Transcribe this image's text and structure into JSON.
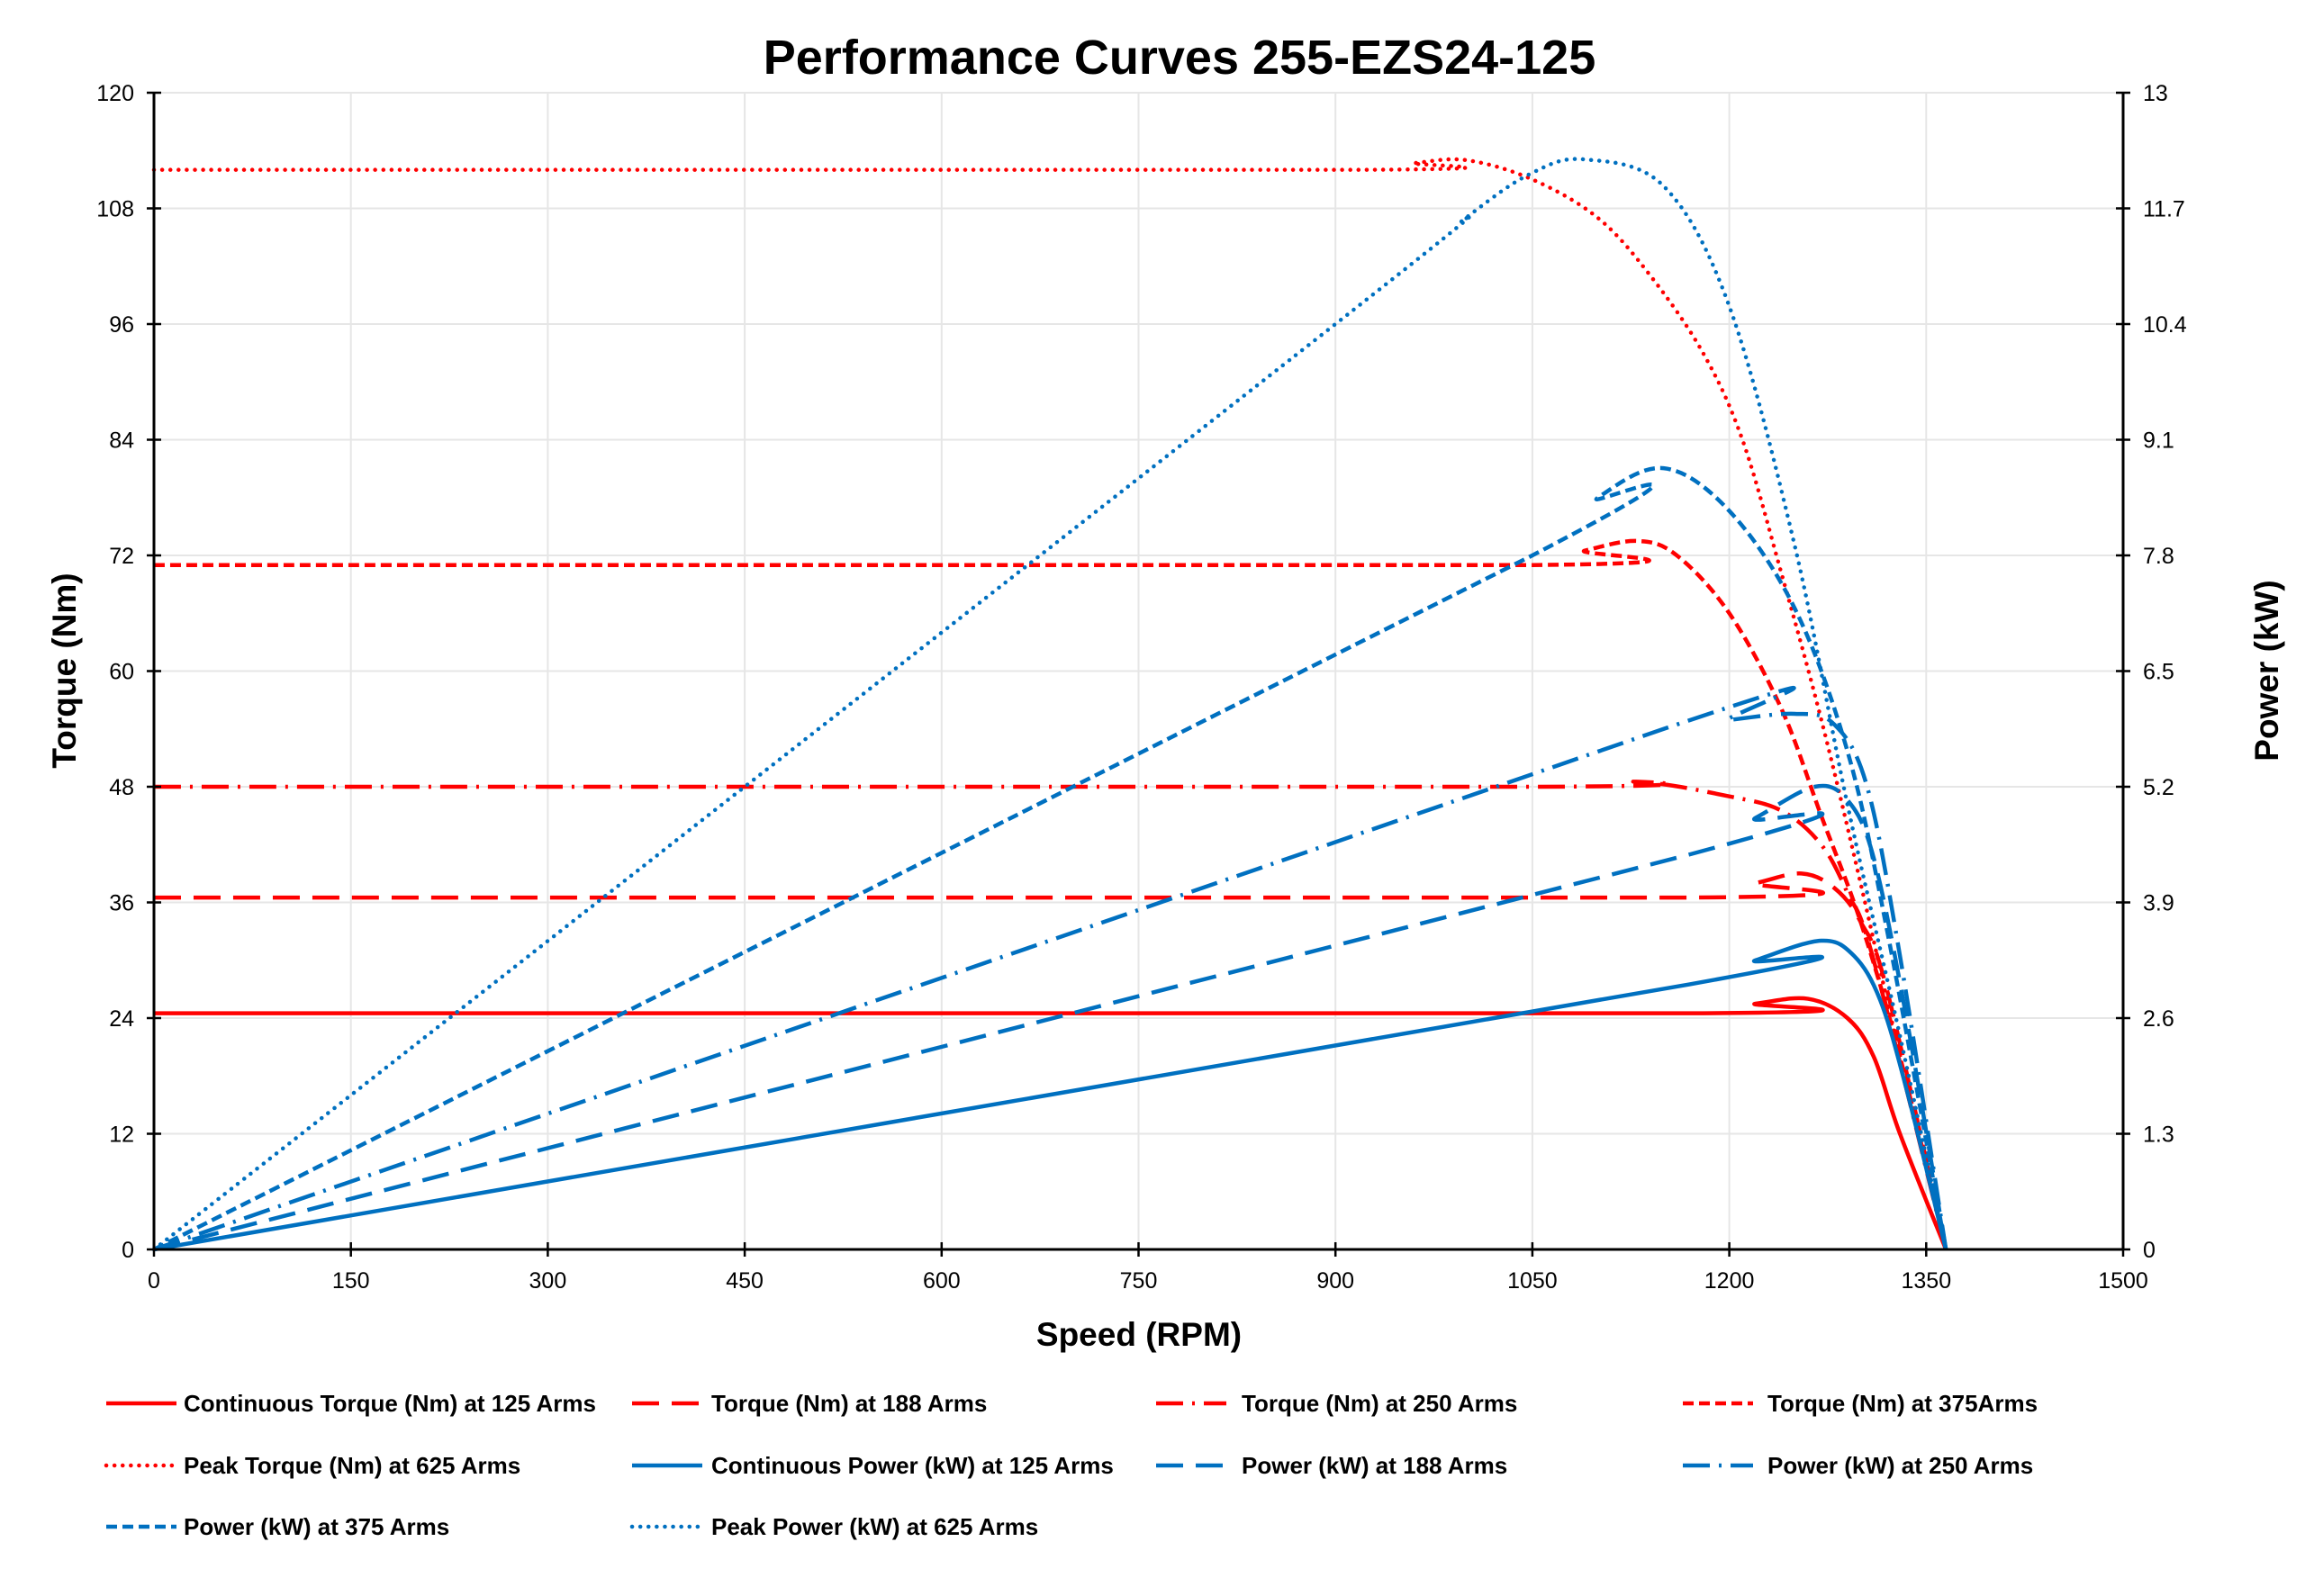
{
  "chart_data": {
    "type": "line",
    "title": "Performance Curves 255-EZS24-125",
    "xlabel": "Speed (RPM)",
    "ylabel": "Torque (Nm)",
    "y2label": "Power (kW)",
    "xlim": [
      0,
      1500
    ],
    "ylim": [
      0,
      120
    ],
    "y2lim": [
      0,
      13
    ],
    "xticks": [
      0,
      150,
      300,
      450,
      600,
      750,
      900,
      1050,
      1200,
      1350,
      1500
    ],
    "yticks": [
      0,
      12,
      24,
      36,
      48,
      60,
      72,
      84,
      96,
      108,
      120
    ],
    "y2ticks": [
      "0",
      "1.3",
      "2.6",
      "3.9",
      "5.2",
      "6.5",
      "7.8",
      "9.1",
      "10.4",
      "11.7",
      "13"
    ],
    "grid": true,
    "legend_position": "bottom",
    "colors": {
      "torque": "#FF0000",
      "power": "#0070C0"
    },
    "series": [
      {
        "name": "Continuous Torque (Nm) at 125 Arms",
        "axis": "left",
        "color": "#FF0000",
        "style": "solid",
        "points": [
          [
            0,
            24.5
          ],
          [
            1170,
            24.5
          ],
          [
            1220,
            25.5
          ],
          [
            1260,
            26
          ],
          [
            1290,
            24
          ],
          [
            1310,
            20
          ],
          [
            1330,
            12
          ],
          [
            1365,
            0
          ]
        ]
      },
      {
        "name": "Torque (Nm) at 188 Arms",
        "axis": "left",
        "color": "#FF0000",
        "style": "long-dash",
        "points": [
          [
            0,
            36.5
          ],
          [
            1170,
            36.5
          ],
          [
            1220,
            38
          ],
          [
            1255,
            39
          ],
          [
            1280,
            37.5
          ],
          [
            1300,
            34
          ],
          [
            1320,
            27
          ],
          [
            1365,
            0
          ]
        ]
      },
      {
        "name": "Torque (Nm) at 250 Arms",
        "axis": "left",
        "color": "#FF0000",
        "style": "dash-dot",
        "points": [
          [
            0,
            48
          ],
          [
            1050,
            48
          ],
          [
            1130,
            48.5
          ],
          [
            1200,
            47
          ],
          [
            1240,
            45.5
          ],
          [
            1270,
            42
          ],
          [
            1290,
            37
          ],
          [
            1310,
            30
          ],
          [
            1365,
            0
          ]
        ]
      },
      {
        "name": "Torque (Nm) at 375Arms",
        "axis": "left",
        "color": "#FF0000",
        "style": "short-dash",
        "points": [
          [
            0,
            71
          ],
          [
            1050,
            71
          ],
          [
            1090,
            72.5
          ],
          [
            1130,
            73.5
          ],
          [
            1160,
            72
          ],
          [
            1200,
            66
          ],
          [
            1240,
            56
          ],
          [
            1270,
            45
          ],
          [
            1300,
            34
          ],
          [
            1330,
            20
          ],
          [
            1365,
            0
          ]
        ]
      },
      {
        "name": "Peak Torque (Nm) at 625  Arms",
        "axis": "left",
        "color": "#FF0000",
        "style": "dotted",
        "points": [
          [
            0,
            112
          ],
          [
            920,
            112
          ],
          [
            960,
            112.7
          ],
          [
            1000,
            113
          ],
          [
            1050,
            111
          ],
          [
            1100,
            107
          ],
          [
            1140,
            101
          ],
          [
            1180,
            93
          ],
          [
            1210,
            84
          ],
          [
            1240,
            70
          ],
          [
            1270,
            55
          ],
          [
            1300,
            38
          ],
          [
            1330,
            20
          ],
          [
            1365,
            0
          ]
        ]
      },
      {
        "name": "Continuous Power (kW) at 125 Arms",
        "axis": "right",
        "color": "#0070C0",
        "style": "solid",
        "points": [
          [
            0,
            0
          ],
          [
            1170,
            2.98
          ],
          [
            1220,
            3.25
          ],
          [
            1270,
            3.47
          ],
          [
            1295,
            3.3
          ],
          [
            1315,
            2.8
          ],
          [
            1335,
            1.8
          ],
          [
            1365,
            0
          ]
        ]
      },
      {
        "name": "Power (kW) at 188 Arms",
        "axis": "right",
        "color": "#0070C0",
        "style": "long-dash",
        "points": [
          [
            0,
            0
          ],
          [
            1170,
            4.44
          ],
          [
            1220,
            4.85
          ],
          [
            1265,
            5.2
          ],
          [
            1290,
            5.05
          ],
          [
            1310,
            4.4
          ],
          [
            1335,
            2.6
          ],
          [
            1365,
            0
          ]
        ]
      },
      {
        "name": "Power (kW) at 250 Arms",
        "axis": "right",
        "color": "#0070C0",
        "style": "dash-dot",
        "points": [
          [
            0,
            0
          ],
          [
            1150,
            5.85
          ],
          [
            1200,
            5.95
          ],
          [
            1250,
            6.02
          ],
          [
            1280,
            5.9
          ],
          [
            1305,
            5.2
          ],
          [
            1330,
            3.3
          ],
          [
            1365,
            0
          ]
        ]
      },
      {
        "name": "Power (kW) at 375 Arms",
        "axis": "right",
        "color": "#0070C0",
        "style": "short-dash",
        "points": [
          [
            0,
            0
          ],
          [
            1050,
            7.8
          ],
          [
            1100,
            8.45
          ],
          [
            1150,
            8.78
          ],
          [
            1200,
            8.3
          ],
          [
            1250,
            7.2
          ],
          [
            1290,
            5.6
          ],
          [
            1320,
            3.6
          ],
          [
            1365,
            0
          ]
        ]
      },
      {
        "name": "Peak Power (kW) at 625 Arms",
        "axis": "right",
        "color": "#0070C0",
        "style": "dotted",
        "points": [
          [
            0,
            0
          ],
          [
            900,
            10.4
          ],
          [
            1000,
            11.6
          ],
          [
            1050,
            12.1
          ],
          [
            1090,
            12.25
          ],
          [
            1150,
            11.95
          ],
          [
            1200,
            10.6
          ],
          [
            1250,
            7.9
          ],
          [
            1290,
            5.0
          ],
          [
            1330,
            2.4
          ],
          [
            1365,
            0
          ]
        ]
      }
    ]
  }
}
